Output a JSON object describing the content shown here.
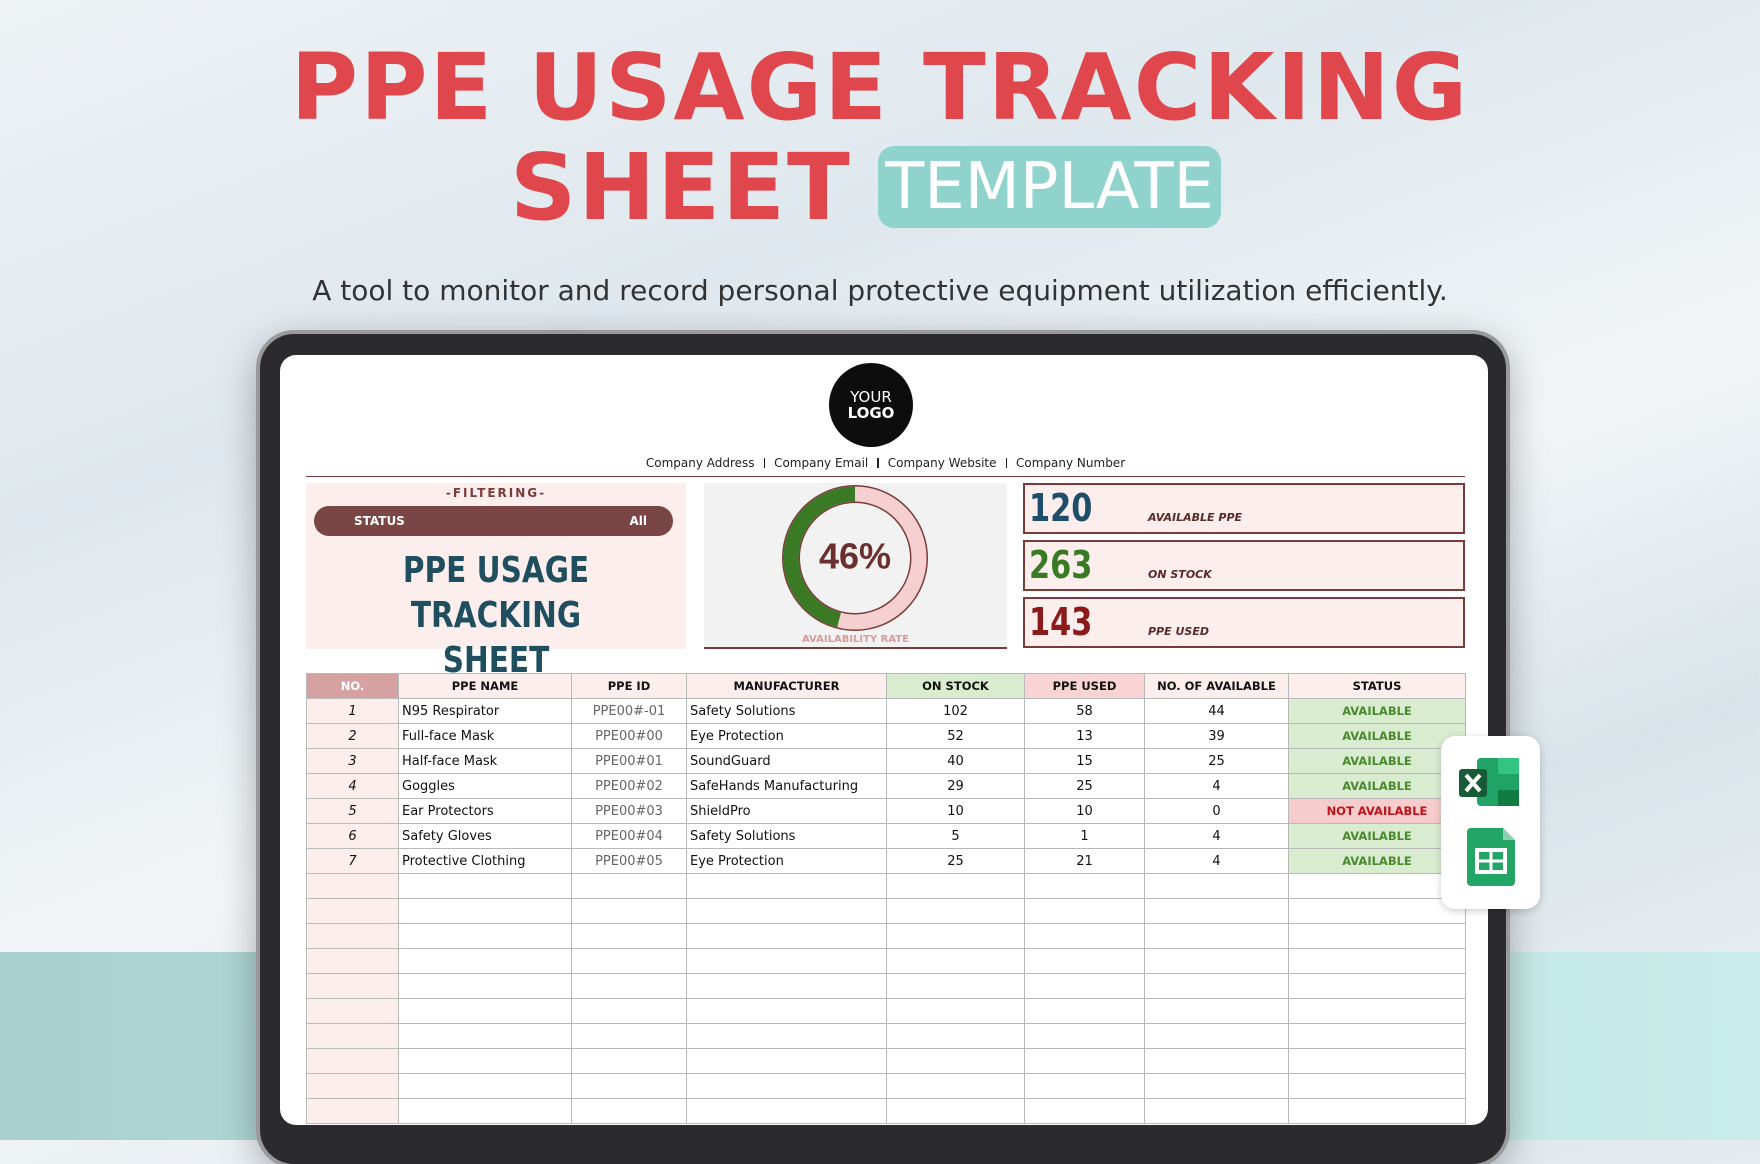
{
  "header": {
    "title_line1": "PPE USAGE TRACKING",
    "title_line2": "SHEET",
    "badge": "TEMPLATE",
    "subtitle": "A tool to monitor and record personal protective equipment utilization efficiently."
  },
  "sheet": {
    "logo": [
      "YOUR",
      "LOGO"
    ],
    "company_info": [
      "Company Address",
      "Company Email",
      "Company Website",
      "Company Number"
    ],
    "filter": {
      "heading": "-FILTERING-",
      "label": "STATUS",
      "value": "All"
    },
    "title": [
      "PPE USAGE TRACKING",
      "SHEET"
    ],
    "availability": {
      "value": 46,
      "label": "46%",
      "caption": "AVAILABILITY RATE"
    },
    "kpis": [
      {
        "value": 120,
        "label": "AVAILABLE PPE"
      },
      {
        "value": 263,
        "label": "ON STOCK"
      },
      {
        "value": 143,
        "label": "PPE USED"
      }
    ],
    "table": {
      "columns": [
        "NO.",
        "PPE NAME",
        "PPE ID",
        "MANUFACTURER",
        "ON STOCK",
        "PPE USED",
        "NO. OF AVAILABLE",
        "STATUS"
      ],
      "rows": [
        [
          1,
          "N95 Respirator",
          "PPE00#-01",
          "Safety Solutions",
          102,
          58,
          44,
          "AVAILABLE"
        ],
        [
          2,
          "Full-face Mask",
          "PPE00#00",
          "Eye Protection",
          52,
          13,
          39,
          "AVAILABLE"
        ],
        [
          3,
          "Half-face Mask",
          "PPE00#01",
          "SoundGuard",
          40,
          15,
          25,
          "AVAILABLE"
        ],
        [
          4,
          "Goggles",
          "PPE00#02",
          "SafeHands Manufacturing",
          29,
          25,
          4,
          "AVAILABLE"
        ],
        [
          5,
          "Ear Protectors",
          "PPE00#03",
          "ShieldPro",
          10,
          10,
          0,
          "NOT AVAILABLE"
        ],
        [
          6,
          "Safety Gloves",
          "PPE00#04",
          "Safety Solutions",
          5,
          1,
          4,
          "AVAILABLE"
        ],
        [
          7,
          "Protective Clothing",
          "PPE00#05",
          "Eye Protection",
          25,
          21,
          4,
          "AVAILABLE"
        ]
      ]
    }
  }
}
